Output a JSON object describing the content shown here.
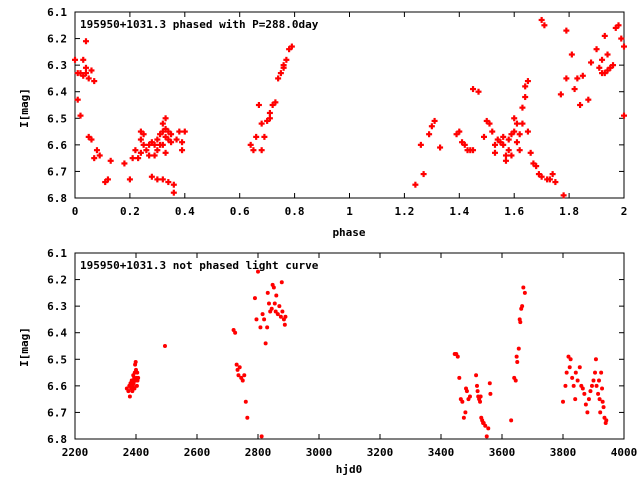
{
  "chart_data": [
    {
      "type": "scatter",
      "title": "195950+1031.3 phased with P=288.0day",
      "xlabel": "phase",
      "ylabel": "I[mag]",
      "xlim": [
        0,
        2
      ],
      "ylim": [
        6.8,
        6.1
      ],
      "y_inverted": true,
      "xticks": [
        "0",
        "0.2",
        "0.4",
        "0.6",
        "0.8",
        "1",
        "1.2",
        "1.4",
        "1.6",
        "1.8",
        "2"
      ],
      "yticks": [
        "6.1",
        "6.2",
        "6.3",
        "6.4",
        "6.5",
        "6.6",
        "6.7",
        "6.8"
      ],
      "marker": "plus",
      "color": "#ff0000",
      "points": [
        [
          0.0,
          6.28
        ],
        [
          0.01,
          6.33
        ],
        [
          0.01,
          6.43
        ],
        [
          0.02,
          6.49
        ],
        [
          0.02,
          6.33
        ],
        [
          0.03,
          6.28
        ],
        [
          0.03,
          6.34
        ],
        [
          0.04,
          6.21
        ],
        [
          0.04,
          6.31
        ],
        [
          0.04,
          6.33
        ],
        [
          0.05,
          6.35
        ],
        [
          0.05,
          6.57
        ],
        [
          0.06,
          6.32
        ],
        [
          0.06,
          6.58
        ],
        [
          0.07,
          6.36
        ],
        [
          0.07,
          6.65
        ],
        [
          0.08,
          6.62
        ],
        [
          0.09,
          6.64
        ],
        [
          0.11,
          6.74
        ],
        [
          0.12,
          6.73
        ],
        [
          0.13,
          6.66
        ],
        [
          0.18,
          6.67
        ],
        [
          0.2,
          6.73
        ],
        [
          0.21,
          6.65
        ],
        [
          0.22,
          6.62
        ],
        [
          0.23,
          6.65
        ],
        [
          0.24,
          6.55
        ],
        [
          0.24,
          6.58
        ],
        [
          0.24,
          6.63
        ],
        [
          0.25,
          6.56
        ],
        [
          0.25,
          6.6
        ],
        [
          0.26,
          6.62
        ],
        [
          0.27,
          6.6
        ],
        [
          0.27,
          6.64
        ],
        [
          0.28,
          6.59
        ],
        [
          0.28,
          6.72
        ],
        [
          0.29,
          6.6
        ],
        [
          0.29,
          6.64
        ],
        [
          0.3,
          6.58
        ],
        [
          0.3,
          6.73
        ],
        [
          0.3,
          6.62
        ],
        [
          0.31,
          6.56
        ],
        [
          0.31,
          6.6
        ],
        [
          0.32,
          6.52
        ],
        [
          0.32,
          6.55
        ],
        [
          0.32,
          6.6
        ],
        [
          0.32,
          6.73
        ],
        [
          0.33,
          6.5
        ],
        [
          0.33,
          6.54
        ],
        [
          0.33,
          6.57
        ],
        [
          0.33,
          6.63
        ],
        [
          0.34,
          6.55
        ],
        [
          0.34,
          6.58
        ],
        [
          0.34,
          6.74
        ],
        [
          0.35,
          6.56
        ],
        [
          0.35,
          6.59
        ],
        [
          0.36,
          6.75
        ],
        [
          0.36,
          6.78
        ],
        [
          0.37,
          6.58
        ],
        [
          0.38,
          6.55
        ],
        [
          0.39,
          6.59
        ],
        [
          0.39,
          6.62
        ],
        [
          0.4,
          6.55
        ],
        [
          0.64,
          6.6
        ],
        [
          0.65,
          6.62
        ],
        [
          0.66,
          6.57
        ],
        [
          0.67,
          6.45
        ],
        [
          0.68,
          6.52
        ],
        [
          0.68,
          6.62
        ],
        [
          0.69,
          6.57
        ],
        [
          0.7,
          6.51
        ],
        [
          0.71,
          6.48
        ],
        [
          0.71,
          6.5
        ],
        [
          0.72,
          6.45
        ],
        [
          0.73,
          6.44
        ],
        [
          0.74,
          6.35
        ],
        [
          0.75,
          6.33
        ],
        [
          0.76,
          6.31
        ],
        [
          0.76,
          6.3
        ],
        [
          0.77,
          6.28
        ],
        [
          0.78,
          6.24
        ],
        [
          0.79,
          6.23
        ],
        [
          1.24,
          6.75
        ],
        [
          1.26,
          6.6
        ],
        [
          1.27,
          6.71
        ],
        [
          1.29,
          6.56
        ],
        [
          1.3,
          6.53
        ],
        [
          1.31,
          6.51
        ],
        [
          1.33,
          6.61
        ],
        [
          1.39,
          6.56
        ],
        [
          1.4,
          6.55
        ],
        [
          1.41,
          6.59
        ],
        [
          1.42,
          6.6
        ],
        [
          1.43,
          6.62
        ],
        [
          1.44,
          6.62
        ],
        [
          1.45,
          6.62
        ],
        [
          1.45,
          6.39
        ],
        [
          1.47,
          6.4
        ],
        [
          1.49,
          6.57
        ],
        [
          1.5,
          6.51
        ],
        [
          1.51,
          6.52
        ],
        [
          1.52,
          6.55
        ],
        [
          1.53,
          6.6
        ],
        [
          1.53,
          6.63
        ],
        [
          1.54,
          6.58
        ],
        [
          1.55,
          6.59
        ],
        [
          1.56,
          6.57
        ],
        [
          1.56,
          6.6
        ],
        [
          1.57,
          6.64
        ],
        [
          1.57,
          6.66
        ],
        [
          1.58,
          6.58
        ],
        [
          1.58,
          6.62
        ],
        [
          1.59,
          6.56
        ],
        [
          1.59,
          6.64
        ],
        [
          1.6,
          6.5
        ],
        [
          1.6,
          6.55
        ],
        [
          1.61,
          6.52
        ],
        [
          1.61,
          6.59
        ],
        [
          1.62,
          6.56
        ],
        [
          1.62,
          6.62
        ],
        [
          1.63,
          6.46
        ],
        [
          1.63,
          6.52
        ],
        [
          1.64,
          6.42
        ],
        [
          1.64,
          6.38
        ],
        [
          1.65,
          6.36
        ],
        [
          1.65,
          6.55
        ],
        [
          1.66,
          6.63
        ],
        [
          1.67,
          6.67
        ],
        [
          1.68,
          6.68
        ],
        [
          1.69,
          6.71
        ],
        [
          1.7,
          6.13
        ],
        [
          1.7,
          6.72
        ],
        [
          1.71,
          6.15
        ],
        [
          1.72,
          6.73
        ],
        [
          1.73,
          6.73
        ],
        [
          1.74,
          6.71
        ],
        [
          1.75,
          6.74
        ],
        [
          1.77,
          6.41
        ],
        [
          1.78,
          6.79
        ],
        [
          1.79,
          6.17
        ],
        [
          1.79,
          6.35
        ],
        [
          1.81,
          6.26
        ],
        [
          1.82,
          6.39
        ],
        [
          1.83,
          6.35
        ],
        [
          1.84,
          6.45
        ],
        [
          1.85,
          6.34
        ],
        [
          1.87,
          6.43
        ],
        [
          1.88,
          6.29
        ],
        [
          1.9,
          6.24
        ],
        [
          1.91,
          6.31
        ],
        [
          1.92,
          6.28
        ],
        [
          1.92,
          6.33
        ],
        [
          1.93,
          6.33
        ],
        [
          1.93,
          6.19
        ],
        [
          1.94,
          6.26
        ],
        [
          1.94,
          6.32
        ],
        [
          1.95,
          6.31
        ],
        [
          1.96,
          6.3
        ],
        [
          1.97,
          6.16
        ],
        [
          1.98,
          6.15
        ],
        [
          1.99,
          6.2
        ],
        [
          2.0,
          6.23
        ],
        [
          2.0,
          6.49
        ]
      ]
    },
    {
      "type": "scatter",
      "title": "195950+1031.3 not phased light curve",
      "xlabel": "hjd0",
      "ylabel": "I[mag]",
      "xlim": [
        2200,
        4000
      ],
      "ylim": [
        6.8,
        6.1
      ],
      "y_inverted": true,
      "xticks": [
        "2200",
        "2400",
        "2600",
        "2800",
        "3000",
        "3200",
        "3400",
        "3600",
        "3800",
        "4000"
      ],
      "yticks": [
        "6.1",
        "6.2",
        "6.3",
        "6.4",
        "6.5",
        "6.6",
        "6.7",
        "6.8"
      ],
      "marker": "dot",
      "color": "#ff0000",
      "points": [
        [
          2370,
          6.61
        ],
        [
          2375,
          6.62
        ],
        [
          2378,
          6.6
        ],
        [
          2380,
          6.64
        ],
        [
          2382,
          6.59
        ],
        [
          2384,
          6.61
        ],
        [
          2386,
          6.58
        ],
        [
          2388,
          6.62
        ],
        [
          2390,
          6.6
        ],
        [
          2391,
          6.56
        ],
        [
          2392,
          6.59
        ],
        [
          2394,
          6.57
        ],
        [
          2395,
          6.61
        ],
        [
          2396,
          6.55
        ],
        [
          2397,
          6.52
        ],
        [
          2398,
          6.58
        ],
        [
          2399,
          6.51
        ],
        [
          2400,
          6.54
        ],
        [
          2402,
          6.57
        ],
        [
          2403,
          6.6
        ],
        [
          2404,
          6.55
        ],
        [
          2405,
          6.58
        ],
        [
          2407,
          6.57
        ],
        [
          2495,
          6.45
        ],
        [
          2720,
          6.39
        ],
        [
          2725,
          6.4
        ],
        [
          2730,
          6.52
        ],
        [
          2733,
          6.54
        ],
        [
          2736,
          6.56
        ],
        [
          2740,
          6.53
        ],
        [
          2745,
          6.57
        ],
        [
          2750,
          6.58
        ],
        [
          2755,
          6.56
        ],
        [
          2760,
          6.66
        ],
        [
          2765,
          6.72
        ],
        [
          2790,
          6.27
        ],
        [
          2795,
          6.35
        ],
        [
          2800,
          6.17
        ],
        [
          2808,
          6.38
        ],
        [
          2812,
          6.79
        ],
        [
          2815,
          6.33
        ],
        [
          2820,
          6.35
        ],
        [
          2825,
          6.44
        ],
        [
          2830,
          6.38
        ],
        [
          2832,
          6.25
        ],
        [
          2836,
          6.29
        ],
        [
          2840,
          6.32
        ],
        [
          2845,
          6.31
        ],
        [
          2848,
          6.22
        ],
        [
          2852,
          6.23
        ],
        [
          2855,
          6.29
        ],
        [
          2858,
          6.32
        ],
        [
          2860,
          6.26
        ],
        [
          2865,
          6.33
        ],
        [
          2870,
          6.3
        ],
        [
          2875,
          6.34
        ],
        [
          2878,
          6.21
        ],
        [
          2880,
          6.32
        ],
        [
          2885,
          6.35
        ],
        [
          2888,
          6.37
        ],
        [
          2890,
          6.34
        ],
        [
          3445,
          6.48
        ],
        [
          3450,
          6.48
        ],
        [
          3455,
          6.49
        ],
        [
          3460,
          6.57
        ],
        [
          3465,
          6.65
        ],
        [
          3470,
          6.66
        ],
        [
          3475,
          6.72
        ],
        [
          3480,
          6.7
        ],
        [
          3482,
          6.61
        ],
        [
          3485,
          6.62
        ],
        [
          3490,
          6.65
        ],
        [
          3495,
          6.64
        ],
        [
          3515,
          6.56
        ],
        [
          3518,
          6.6
        ],
        [
          3520,
          6.62
        ],
        [
          3522,
          6.64
        ],
        [
          3525,
          6.65
        ],
        [
          3528,
          6.66
        ],
        [
          3530,
          6.64
        ],
        [
          3532,
          6.72
        ],
        [
          3535,
          6.73
        ],
        [
          3538,
          6.74
        ],
        [
          3540,
          6.74
        ],
        [
          3545,
          6.75
        ],
        [
          3550,
          6.79
        ],
        [
          3555,
          6.76
        ],
        [
          3560,
          6.59
        ],
        [
          3562,
          6.63
        ],
        [
          3630,
          6.73
        ],
        [
          3640,
          6.57
        ],
        [
          3645,
          6.58
        ],
        [
          3648,
          6.49
        ],
        [
          3650,
          6.51
        ],
        [
          3655,
          6.46
        ],
        [
          3658,
          6.35
        ],
        [
          3660,
          6.36
        ],
        [
          3663,
          6.31
        ],
        [
          3666,
          6.3
        ],
        [
          3670,
          6.23
        ],
        [
          3675,
          6.25
        ],
        [
          3800,
          6.66
        ],
        [
          3808,
          6.6
        ],
        [
          3812,
          6.55
        ],
        [
          3818,
          6.49
        ],
        [
          3822,
          6.53
        ],
        [
          3825,
          6.5
        ],
        [
          3830,
          6.57
        ],
        [
          3835,
          6.6
        ],
        [
          3840,
          6.65
        ],
        [
          3842,
          6.55
        ],
        [
          3848,
          6.58
        ],
        [
          3855,
          6.53
        ],
        [
          3860,
          6.6
        ],
        [
          3865,
          6.61
        ],
        [
          3870,
          6.63
        ],
        [
          3875,
          6.67
        ],
        [
          3880,
          6.7
        ],
        [
          3885,
          6.65
        ],
        [
          3890,
          6.62
        ],
        [
          3895,
          6.6
        ],
        [
          3900,
          6.58
        ],
        [
          3905,
          6.55
        ],
        [
          3908,
          6.5
        ],
        [
          3910,
          6.6
        ],
        [
          3915,
          6.63
        ],
        [
          3918,
          6.58
        ],
        [
          3920,
          6.65
        ],
        [
          3922,
          6.7
        ],
        [
          3925,
          6.55
        ],
        [
          3928,
          6.61
        ],
        [
          3930,
          6.66
        ],
        [
          3933,
          6.68
        ],
        [
          3936,
          6.72
        ],
        [
          3940,
          6.74
        ],
        [
          3942,
          6.73
        ]
      ]
    }
  ]
}
